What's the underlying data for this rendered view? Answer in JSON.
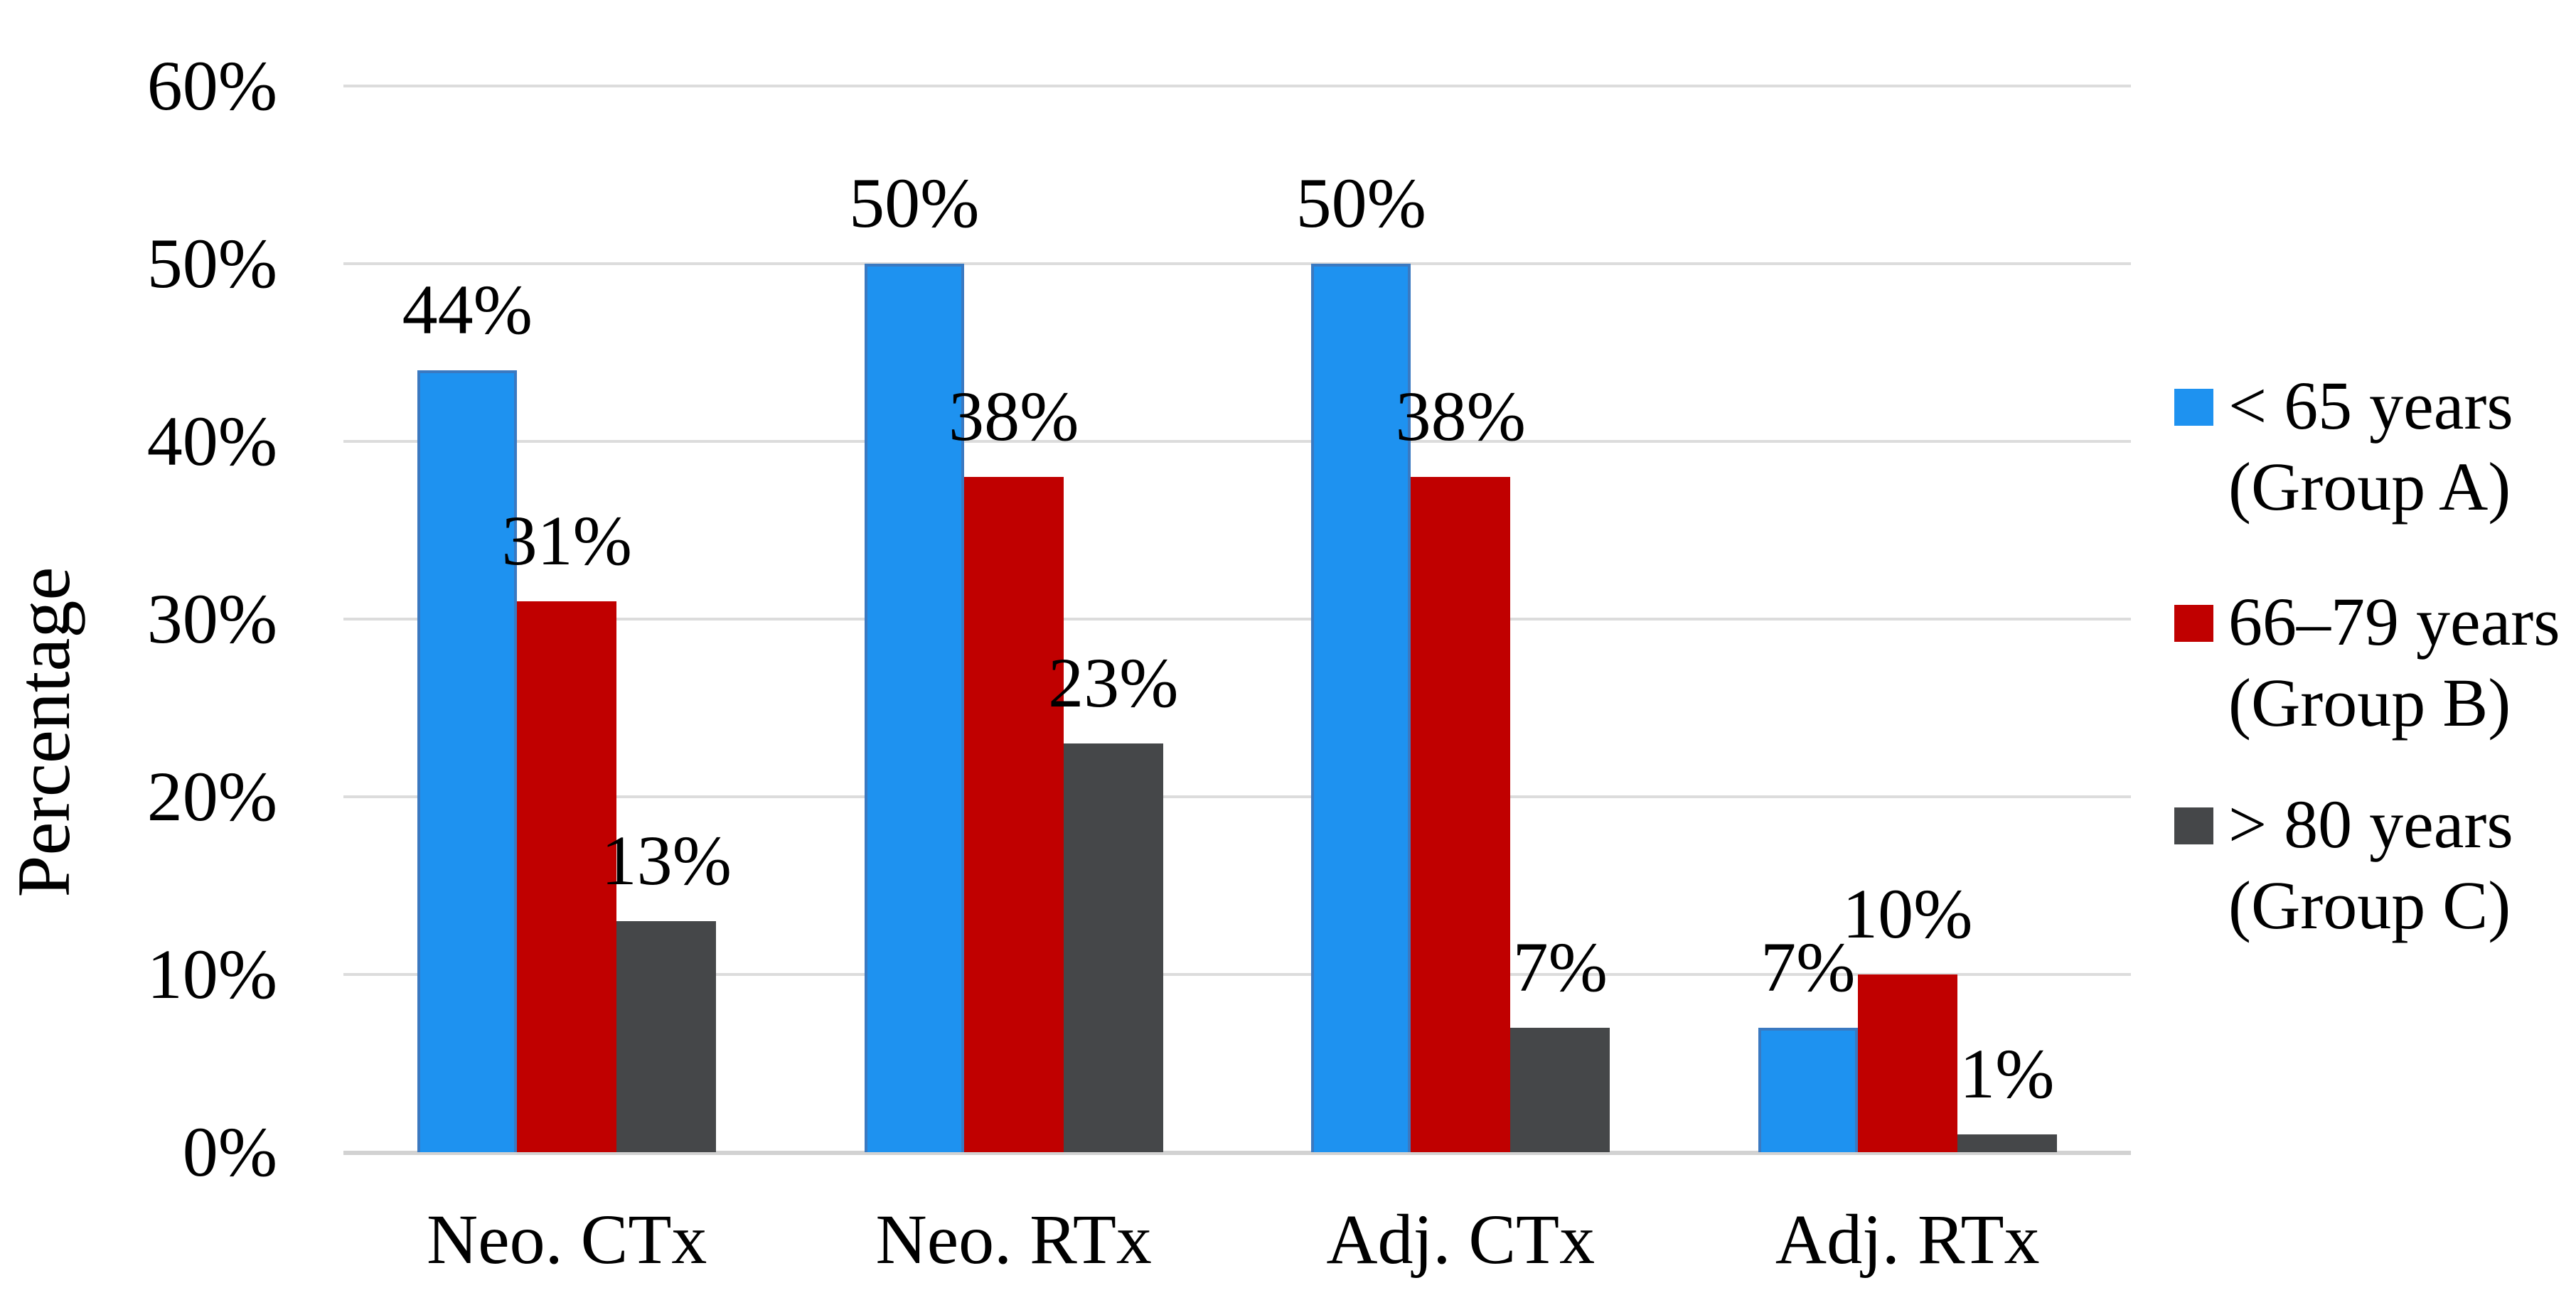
{
  "chart_data": {
    "type": "bar",
    "title": "",
    "ylabel": "Percentage",
    "xlabel": "",
    "categories": [
      "Neo. CTx",
      "Neo. RTx",
      "Adj. CTx",
      "Adj. RTx"
    ],
    "series": [
      {
        "name": "< 65 years (Group A)",
        "legend_lines": [
          "< 65 years",
          "(Group A)"
        ],
        "color": "#1E92F0",
        "border_color": "#3A79C1",
        "values": [
          44,
          50,
          50,
          7
        ],
        "labels": [
          "44%",
          "50%",
          "50%",
          "7%"
        ]
      },
      {
        "name": "66–79 years (Group B)",
        "legend_lines": [
          "66–79 years",
          "(Group B)"
        ],
        "color": "#C00000",
        "border_color": "#C00000",
        "values": [
          31,
          38,
          38,
          10
        ],
        "labels": [
          "31%",
          "38%",
          "38%",
          "10%"
        ]
      },
      {
        "name": "> 80 years (Group C)",
        "legend_lines": [
          "> 80 years",
          "(Group C)"
        ],
        "color": "#454749",
        "border_color": "#454749",
        "values": [
          13,
          23,
          7,
          1
        ],
        "labels": [
          "13%",
          "23%",
          "7%",
          "1%"
        ]
      }
    ],
    "yticks": [
      "0%",
      "10%",
      "20%",
      "30%",
      "40%",
      "50%",
      "60%"
    ],
    "ylim": [
      0,
      60
    ],
    "ytick_step": 10,
    "grid": true,
    "legend_position": "right",
    "colors": {
      "gridline": "#DCDCDC",
      "axis_line": "#D2D2D2",
      "text": "#000000",
      "background": "#FFFFFF"
    }
  }
}
